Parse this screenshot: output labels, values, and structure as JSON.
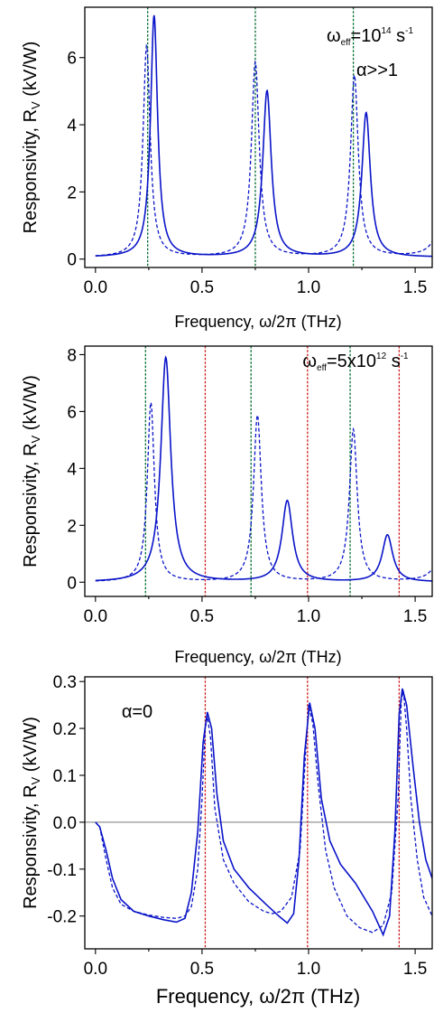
{
  "chart_data": [
    {
      "type": "line",
      "ylabel": "Responsivity, R",
      "ylabel_sub": "V",
      "ylabel_units": " (kV/W)",
      "xlabel": "Frequency, ω/2π (THz)",
      "xlim": [
        -0.05,
        1.58
      ],
      "ylim": [
        -0.25,
        7.5
      ],
      "xticks": [
        0.0,
        0.5,
        1.0,
        1.5
      ],
      "xtick_labels": [
        "0.0",
        "0.5",
        "1.0",
        "1.5"
      ],
      "yticks": [
        0,
        2,
        4,
        6
      ],
      "ytick_labels": [
        "0",
        "2",
        "4",
        "6"
      ],
      "annotations": [
        {
          "base": "ω",
          "sub": "eff",
          "mid": "=10",
          "sup": "14",
          "tail": " s",
          "sup2": "-1"
        },
        {
          "base": "α>>1"
        }
      ],
      "series": [
        {
          "style": "solid",
          "peaks": [
            {
              "f": 0.275,
              "h": 7.2,
              "w": 0.02
            },
            {
              "f": 0.805,
              "h": 4.95,
              "w": 0.024
            },
            {
              "f": 1.27,
              "h": 4.3,
              "w": 0.024
            }
          ],
          "baseline": 0.05
        },
        {
          "style": "dashed",
          "peaks": [
            {
              "f": 0.24,
              "h": 6.3,
              "w": 0.02
            },
            {
              "f": 0.75,
              "h": 5.8,
              "w": 0.022
            },
            {
              "f": 1.215,
              "h": 5.4,
              "w": 0.022
            },
            {
              "f": 1.65,
              "h": 5.0,
              "w": 0.022
            }
          ],
          "baseline": 0.05
        }
      ],
      "vlines": [
        {
          "x": 0.245,
          "color": "green"
        },
        {
          "x": 0.75,
          "color": "green"
        },
        {
          "x": 1.21,
          "color": "green"
        }
      ]
    },
    {
      "type": "line",
      "ylabel": "Responsivity, R",
      "ylabel_sub": "V",
      "ylabel_units": " (kV/W)",
      "xlabel": "Frequency, ω/2π (THz)",
      "xlim": [
        -0.05,
        1.58
      ],
      "ylim": [
        -0.5,
        8.3
      ],
      "xticks": [
        0.0,
        0.5,
        1.0,
        1.5
      ],
      "xtick_labels": [
        "0.0",
        "0.5",
        "1.0",
        "1.5"
      ],
      "yticks": [
        0,
        2,
        4,
        6,
        8
      ],
      "ytick_labels": [
        "0",
        "2",
        "4",
        "6",
        "8"
      ],
      "annotations": [
        {
          "base": "ω",
          "sub": "eff",
          "mid": "=5x10",
          "sup": "12",
          "tail": " s",
          "sup2": "-1"
        }
      ],
      "series": [
        {
          "style": "solid",
          "peaks": [
            {
              "f": 0.33,
              "h": 7.9,
              "w": 0.028
            },
            {
              "f": 0.9,
              "h": 2.85,
              "w": 0.03
            },
            {
              "f": 1.37,
              "h": 1.65,
              "w": 0.03
            }
          ],
          "baseline": 0.0
        },
        {
          "style": "dashed",
          "peaks": [
            {
              "f": 0.26,
              "h": 6.3,
              "w": 0.02
            },
            {
              "f": 0.76,
              "h": 5.85,
              "w": 0.022
            },
            {
              "f": 1.21,
              "h": 5.35,
              "w": 0.022
            },
            {
              "f": 1.65,
              "h": 5.0,
              "w": 0.022
            }
          ],
          "baseline": 0.0
        }
      ],
      "vlines": [
        {
          "x": 0.235,
          "color": "green"
        },
        {
          "x": 0.73,
          "color": "green"
        },
        {
          "x": 1.195,
          "color": "green"
        },
        {
          "x": 0.515,
          "color": "red"
        },
        {
          "x": 0.995,
          "color": "red"
        },
        {
          "x": 1.425,
          "color": "red"
        }
      ]
    },
    {
      "type": "line",
      "ylabel": "Responsivity, R",
      "ylabel_sub": "V",
      "ylabel_units": " (kV/W)",
      "xlabel": "Frequency, ω/2π (THz)",
      "xlim": [
        -0.05,
        1.58
      ],
      "ylim": [
        -0.27,
        0.31
      ],
      "xticks": [
        0.0,
        0.5,
        1.0,
        1.5
      ],
      "xtick_labels": [
        "0.0",
        "0.5",
        "1.0",
        "1.5"
      ],
      "yticks": [
        -0.2,
        -0.1,
        0.0,
        0.1,
        0.2,
        0.3
      ],
      "ytick_labels": [
        "-0.2",
        "-0.1",
        "0.0",
        "0.1",
        "0.2",
        "0.3"
      ],
      "annotations": [
        {
          "base": "α=0"
        }
      ],
      "zero_line": true,
      "solid_points": [
        [
          0.0,
          0.0
        ],
        [
          0.02,
          -0.01
        ],
        [
          0.05,
          -0.06
        ],
        [
          0.08,
          -0.12
        ],
        [
          0.12,
          -0.165
        ],
        [
          0.18,
          -0.19
        ],
        [
          0.25,
          -0.2
        ],
        [
          0.32,
          -0.208
        ],
        [
          0.38,
          -0.213
        ],
        [
          0.42,
          -0.205
        ],
        [
          0.45,
          -0.15
        ],
        [
          0.48,
          -0.02
        ],
        [
          0.505,
          0.17
        ],
        [
          0.525,
          0.235
        ],
        [
          0.545,
          0.2
        ],
        [
          0.57,
          0.06
        ],
        [
          0.6,
          -0.04
        ],
        [
          0.65,
          -0.1
        ],
        [
          0.72,
          -0.14
        ],
        [
          0.8,
          -0.175
        ],
        [
          0.86,
          -0.2
        ],
        [
          0.9,
          -0.215
        ],
        [
          0.93,
          -0.195
        ],
        [
          0.955,
          -0.08
        ],
        [
          0.98,
          0.14
        ],
        [
          1.005,
          0.255
        ],
        [
          1.03,
          0.2
        ],
        [
          1.06,
          0.05
        ],
        [
          1.1,
          -0.04
        ],
        [
          1.15,
          -0.09
        ],
        [
          1.22,
          -0.13
        ],
        [
          1.3,
          -0.19
        ],
        [
          1.35,
          -0.24
        ],
        [
          1.38,
          -0.2
        ],
        [
          1.405,
          -0.02
        ],
        [
          1.425,
          0.23
        ],
        [
          1.44,
          0.285
        ],
        [
          1.46,
          0.25
        ],
        [
          1.49,
          0.12
        ],
        [
          1.52,
          0.0
        ],
        [
          1.55,
          -0.08
        ],
        [
          1.58,
          -0.12
        ]
      ],
      "dashed_points": [
        [
          0.0,
          0.0
        ],
        [
          0.02,
          -0.01
        ],
        [
          0.05,
          -0.08
        ],
        [
          0.08,
          -0.14
        ],
        [
          0.12,
          -0.175
        ],
        [
          0.18,
          -0.19
        ],
        [
          0.25,
          -0.198
        ],
        [
          0.32,
          -0.203
        ],
        [
          0.38,
          -0.205
        ],
        [
          0.42,
          -0.2
        ],
        [
          0.45,
          -0.18
        ],
        [
          0.48,
          -0.1
        ],
        [
          0.5,
          0.05
        ],
        [
          0.515,
          0.2
        ],
        [
          0.525,
          0.225
        ],
        [
          0.54,
          0.18
        ],
        [
          0.56,
          0.03
        ],
        [
          0.6,
          -0.08
        ],
        [
          0.65,
          -0.13
        ],
        [
          0.72,
          -0.17
        ],
        [
          0.79,
          -0.19
        ],
        [
          0.83,
          -0.195
        ],
        [
          0.87,
          -0.19
        ],
        [
          0.92,
          -0.16
        ],
        [
          0.96,
          -0.06
        ],
        [
          0.99,
          0.18
        ],
        [
          1.0,
          0.25
        ],
        [
          1.02,
          0.21
        ],
        [
          1.045,
          0.08
        ],
        [
          1.08,
          -0.06
        ],
        [
          1.12,
          -0.14
        ],
        [
          1.18,
          -0.2
        ],
        [
          1.24,
          -0.225
        ],
        [
          1.3,
          -0.235
        ],
        [
          1.35,
          -0.22
        ],
        [
          1.39,
          -0.15
        ],
        [
          1.42,
          0.05
        ],
        [
          1.435,
          0.26
        ],
        [
          1.445,
          0.28
        ],
        [
          1.46,
          0.2
        ],
        [
          1.48,
          0.05
        ],
        [
          1.51,
          -0.08
        ],
        [
          1.54,
          -0.16
        ],
        [
          1.58,
          -0.2
        ]
      ],
      "vlines": [
        {
          "x": 0.515,
          "color": "red"
        },
        {
          "x": 0.995,
          "color": "red"
        },
        {
          "x": 1.425,
          "color": "red"
        }
      ]
    }
  ]
}
